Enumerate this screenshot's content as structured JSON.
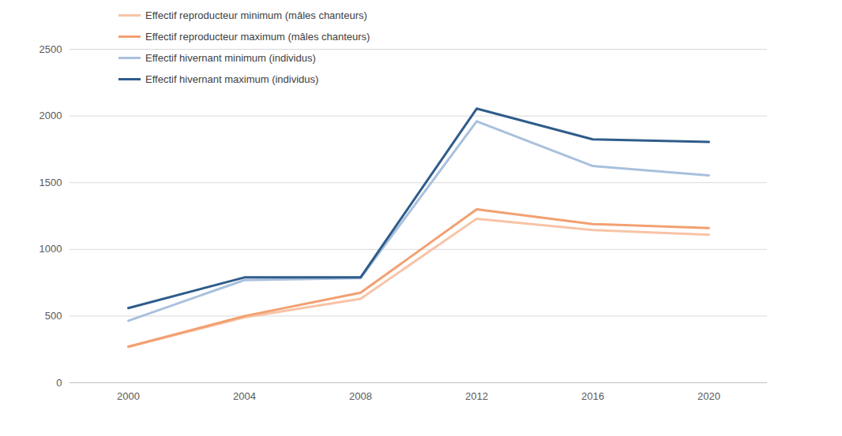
{
  "chart_data": {
    "type": "line",
    "x": [
      2000,
      2004,
      2008,
      2012,
      2016,
      2020
    ],
    "series": [
      {
        "name": "Effectif reproducteur minimum (mâles chanteurs)",
        "color": "#f8c3a6",
        "values": [
          270,
          490,
          630,
          1230,
          1145,
          1110
        ]
      },
      {
        "name": "Effectif reproducteur maximum (mâles chanteurs)",
        "color": "#f2a071",
        "values": [
          270,
          500,
          675,
          1300,
          1190,
          1160
        ]
      },
      {
        "name": "Effectif  hivernant minimum (individus)",
        "color": "#a9c0dd",
        "values": [
          465,
          770,
          785,
          1960,
          1625,
          1555
        ]
      },
      {
        "name": "Effectif  hivernant maximum (individus)",
        "color": "#2f5c8a",
        "values": [
          560,
          790,
          790,
          2055,
          1825,
          1805
        ]
      }
    ],
    "ylim": [
      0,
      2500
    ],
    "yticks": [
      0,
      500,
      1000,
      1500,
      2000,
      2500
    ],
    "grid": true,
    "legend": "top-left"
  }
}
